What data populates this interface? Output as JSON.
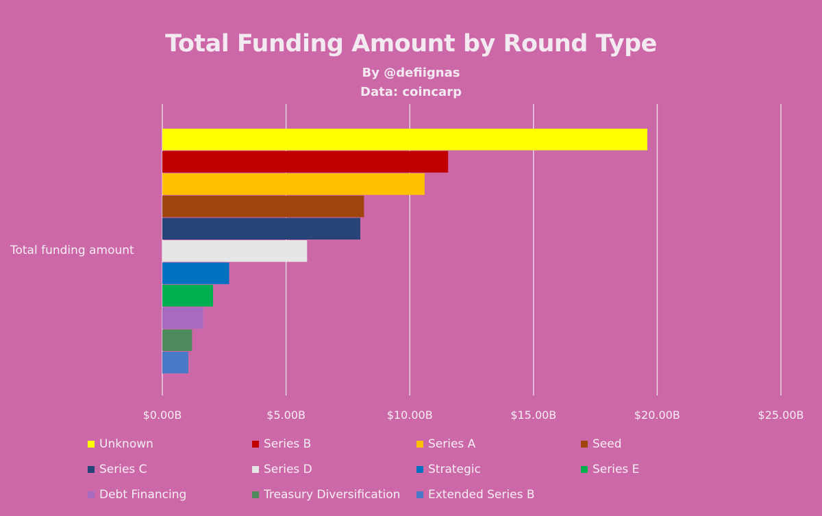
{
  "chart_data": {
    "type": "bar",
    "orientation": "horizontal",
    "title": "Total Funding Amount by Round Type",
    "subtitle_lines": [
      "By @defiignas",
      "Data: coincarp"
    ],
    "category_label": "Total funding amount",
    "xlim": [
      0,
      25
    ],
    "x_ticks": [
      0,
      5,
      10,
      15,
      20,
      25
    ],
    "x_tick_labels": [
      "$0.00B",
      "$5.00B",
      "$10.00B",
      "$15.00B",
      "$20.00B",
      "$25.00B"
    ],
    "grid": true,
    "legend_position": "bottom",
    "series": [
      {
        "name": "Unknown",
        "value": 19.6,
        "color": "#ffff00"
      },
      {
        "name": "Series B",
        "value": 11.55,
        "color": "#c00000"
      },
      {
        "name": "Series A",
        "value": 10.6,
        "color": "#ffc000"
      },
      {
        "name": "Seed",
        "value": 8.15,
        "color": "#a0450e"
      },
      {
        "name": "Series C",
        "value": 8.0,
        "color": "#264478"
      },
      {
        "name": "Series D",
        "value": 5.85,
        "color": "#e6e6e6"
      },
      {
        "name": "Strategic",
        "value": 2.7,
        "color": "#0070c0"
      },
      {
        "name": "Series E",
        "value": 2.05,
        "color": "#00b050"
      },
      {
        "name": "Debt Financing",
        "value": 1.65,
        "color": "#a66bc0"
      },
      {
        "name": "Treasury Diversification",
        "value": 1.2,
        "color": "#4c8a5c"
      },
      {
        "name": "Extended Series B",
        "value": 1.05,
        "color": "#4a78c8"
      }
    ]
  }
}
